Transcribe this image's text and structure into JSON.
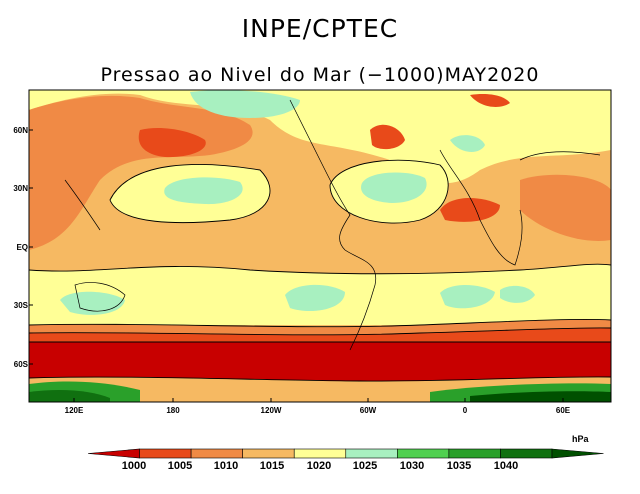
{
  "title": "INPE/CPTEC",
  "subtitle": "Pressao ao Nivel do Mar (−1000)MAY2020",
  "lat_labels": [
    "60N",
    "30N",
    "EQ",
    "30S",
    "60S"
  ],
  "lon_labels": [
    "120E",
    "180",
    "120W",
    "60W",
    "0",
    "60E"
  ],
  "unit": "hPa",
  "legend": {
    "levels": [
      "1000",
      "1005",
      "1010",
      "1015",
      "1020",
      "1025",
      "1030",
      "1035",
      "1040"
    ],
    "colors": [
      "#c80000",
      "#e84a1a",
      "#f08a45",
      "#f6b962",
      "#ffff96",
      "#a8f0c0",
      "#50d050",
      "#2aa02a",
      "#107010",
      "#005000"
    ]
  }
}
